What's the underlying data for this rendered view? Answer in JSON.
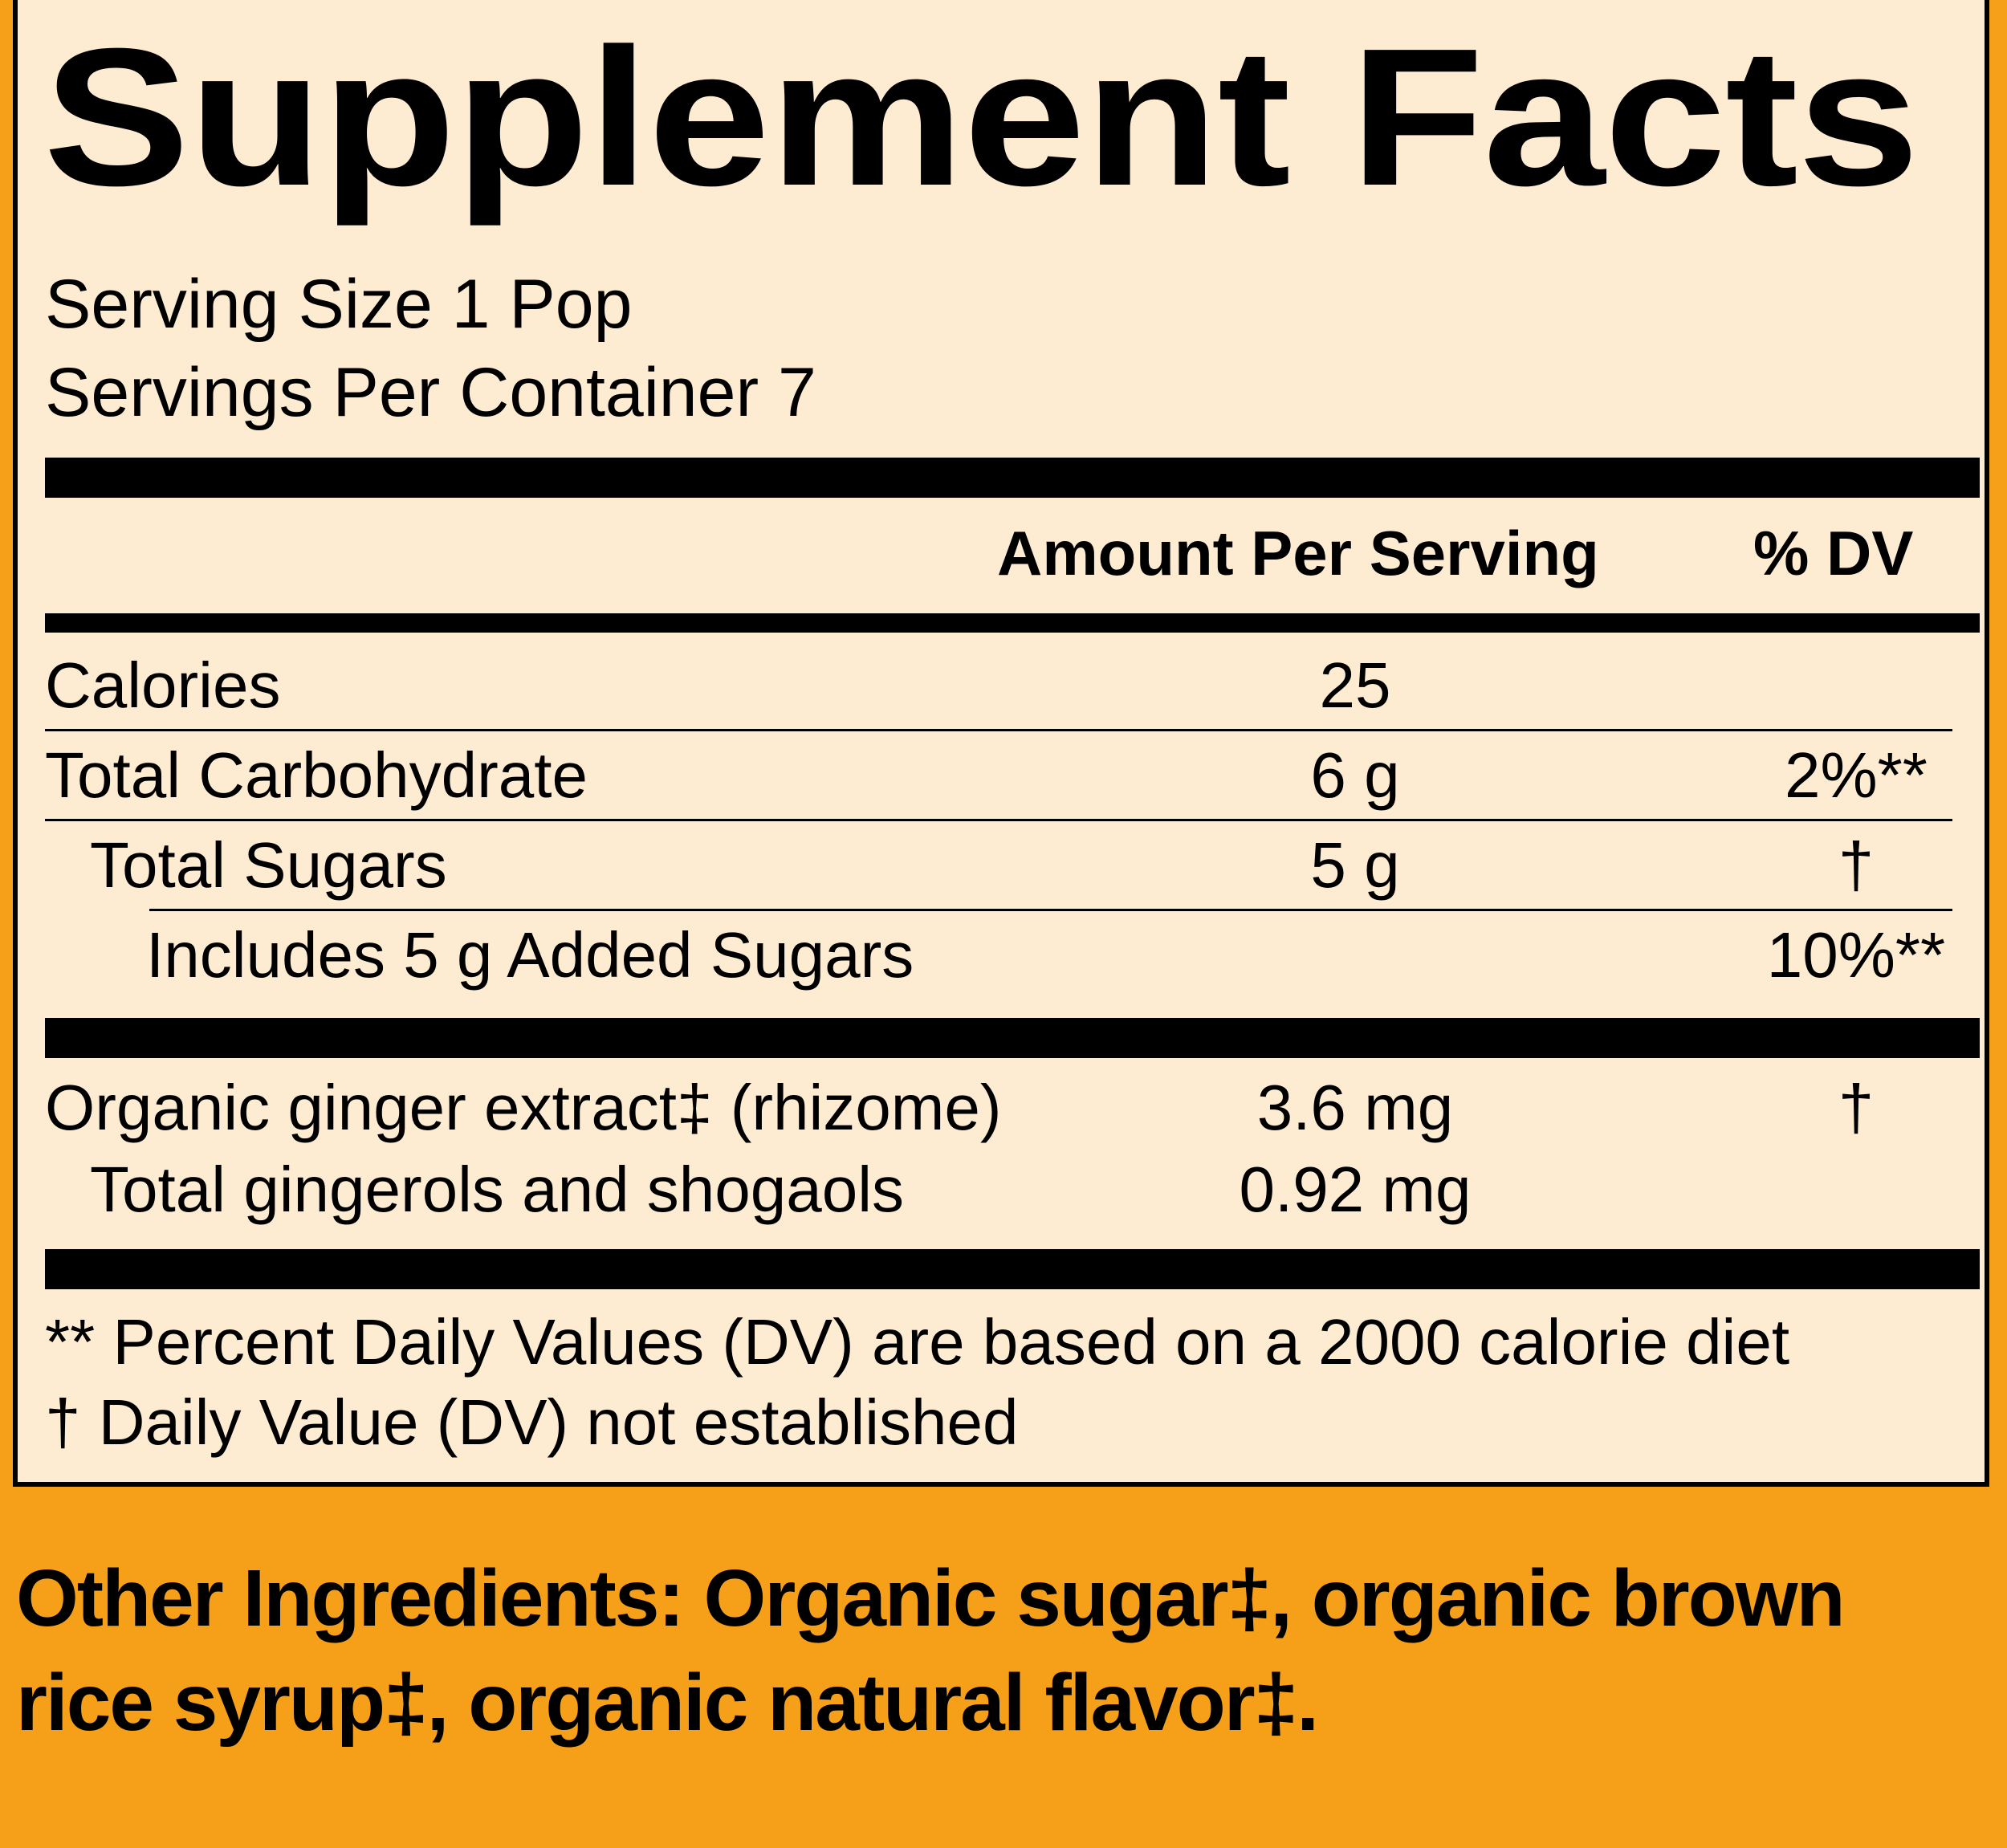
{
  "title": "Supplement Facts",
  "serving_size": "Serving Size 1 Pop",
  "servings_per_container": "Servings Per Container 7",
  "header": {
    "amount": "Amount Per Serving",
    "dv": "% DV"
  },
  "rows": [
    {
      "name": "Calories",
      "amount": "25",
      "dv": ""
    },
    {
      "name": "Total Carbohydrate",
      "amount": "6 g",
      "dv": "2%**"
    },
    {
      "name": "Total Sugars",
      "amount": "5 g",
      "dv": "†"
    },
    {
      "name": "Includes 5 g Added Sugars",
      "amount": "",
      "dv": "10%**"
    }
  ],
  "ingredients": [
    {
      "name": "Organic ginger extract‡ (rhizome)",
      "amount": "3.6 mg",
      "dv": "†"
    },
    {
      "name": "Total gingerols and shogaols",
      "amount": "0.92 mg",
      "dv": ""
    }
  ],
  "footnotes": [
    "** Percent Daily Values (DV) are based on a 2000 calorie diet",
    "† Daily Value (DV) not established"
  ],
  "other_ingredients": "Other Ingredients: Organic sugar‡, organic brown rice syrup‡, organic natural flavor‡.",
  "colors": {
    "background": "#F6A01A",
    "panel": "#FDEBD2",
    "ink": "#000000"
  }
}
